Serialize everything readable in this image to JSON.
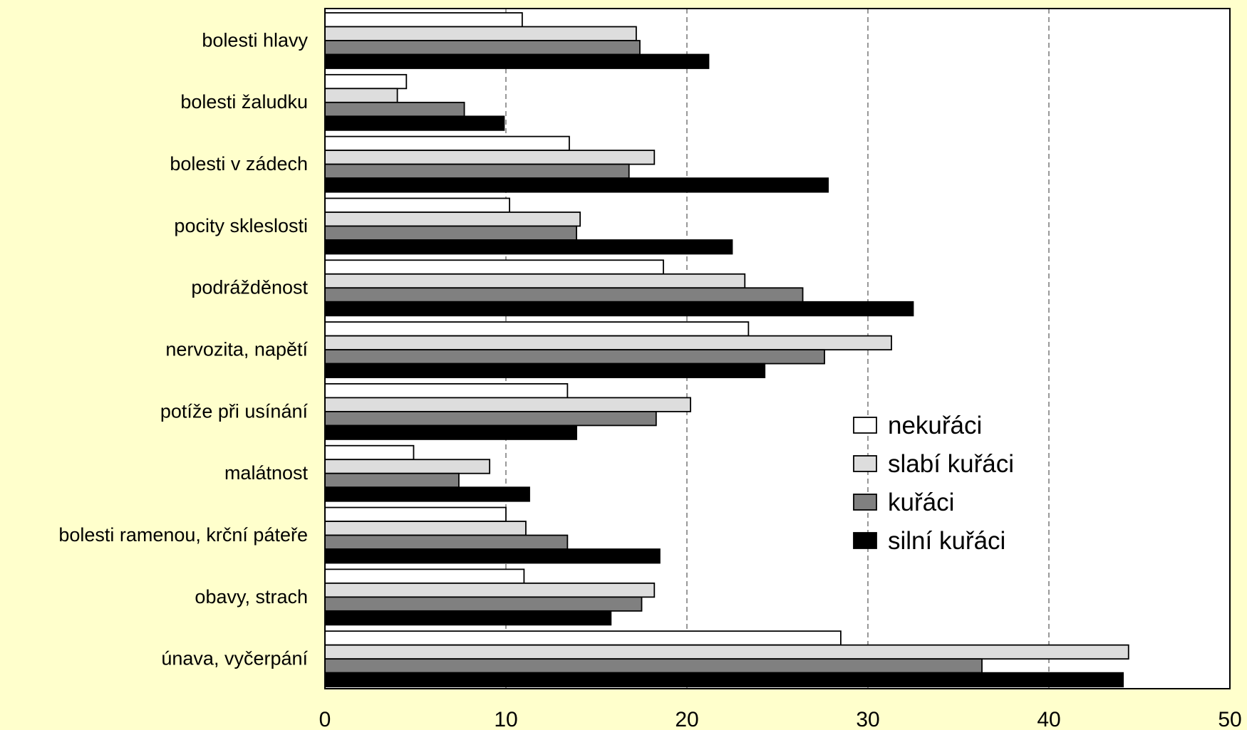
{
  "chart_data": {
    "type": "bar",
    "orientation": "horizontal",
    "title": "",
    "xlabel": "",
    "ylabel": "",
    "xlim": [
      0,
      50
    ],
    "x_ticks": [
      0,
      10,
      20,
      30,
      40,
      50
    ],
    "grid": "vertical dashed",
    "legend_position": "right-middle",
    "categories": [
      "bolesti hlavy",
      "bolesti žaludku",
      "bolesti v zádech",
      "pocity skleslosti",
      "podrážděnost",
      "nervozita, napětí",
      "potíže při usínání",
      "malátnost",
      "bolesti ramenou, krční páteře",
      "obavy, strach",
      "únava, vyčerpání"
    ],
    "series": [
      {
        "name": "nekuřáci",
        "color": "#ffffff",
        "values": [
          10.9,
          4.5,
          13.5,
          10.2,
          18.7,
          23.4,
          13.4,
          4.9,
          10.0,
          11.0,
          28.5
        ]
      },
      {
        "name": "slabí kuřáci",
        "color": "#dddddd",
        "values": [
          17.2,
          4.0,
          18.2,
          14.1,
          23.2,
          31.3,
          20.2,
          9.1,
          11.1,
          18.2,
          44.4
        ]
      },
      {
        "name": "kuřáci",
        "color": "#808080",
        "values": [
          17.4,
          7.7,
          16.8,
          13.9,
          26.4,
          27.6,
          18.3,
          7.4,
          13.4,
          17.5,
          36.3
        ]
      },
      {
        "name": "silní kuřáci",
        "color": "#000000",
        "values": [
          21.2,
          9.9,
          27.8,
          22.5,
          32.5,
          24.3,
          13.9,
          11.3,
          18.5,
          15.8,
          44.1
        ]
      }
    ]
  }
}
